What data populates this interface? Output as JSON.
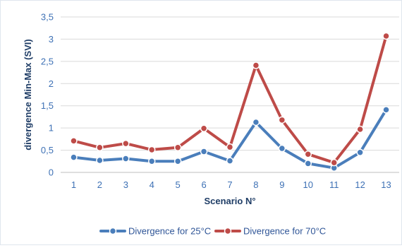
{
  "chart_data": {
    "type": "line",
    "title": "",
    "xlabel": "Scenario N°",
    "ylabel": "divergence Min-Max (SVI)",
    "categories": [
      "1",
      "2",
      "3",
      "4",
      "5",
      "6",
      "7",
      "8",
      "9",
      "10",
      "11",
      "12",
      "13"
    ],
    "yticks": [
      "0",
      "0,5",
      "1",
      "1,5",
      "2",
      "2,5",
      "3",
      "3,5"
    ],
    "ylim": [
      0,
      3.5
    ],
    "grid": true,
    "legend_position": "bottom",
    "series": [
      {
        "name": "Divergence for 25°C",
        "color": "#4a7ebb",
        "values": [
          0.34,
          0.27,
          0.31,
          0.25,
          0.25,
          0.47,
          0.26,
          1.13,
          0.54,
          0.2,
          0.1,
          0.45,
          1.41
        ]
      },
      {
        "name": "Divergence for 70°C",
        "color": "#be4b48",
        "values": [
          0.71,
          0.56,
          0.65,
          0.51,
          0.56,
          0.99,
          0.57,
          2.41,
          1.18,
          0.41,
          0.22,
          0.97,
          3.07
        ]
      }
    ]
  }
}
